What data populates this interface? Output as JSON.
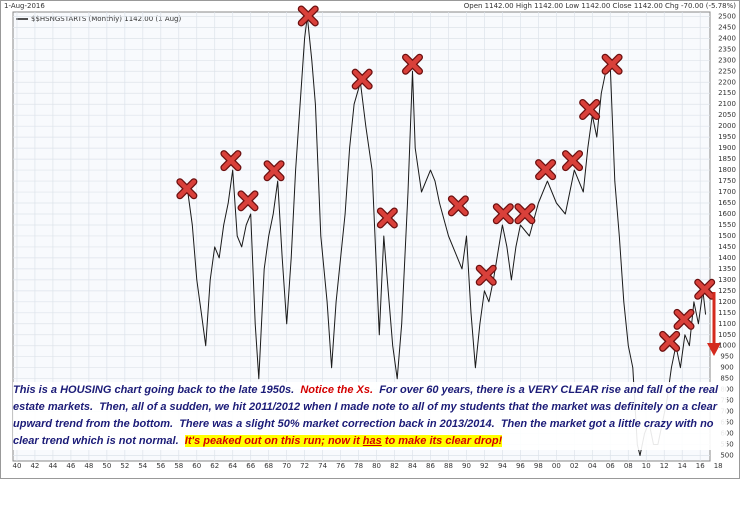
{
  "chart_data": {
    "type": "line",
    "date": "1-Aug-2016",
    "header_right": "Open 1142.00  High 1142.00  Low 1142.00  Close 1142.00  Chg -70.00 (-5.78%)",
    "series": [
      {
        "name": "$$HSNGSTARTS (Monthly) 1142.00 (1 Aug)",
        "color": "#1a1a1a",
        "x": [
          1959.0,
          1959.5,
          1960.0,
          1960.5,
          1961.0,
          1961.5,
          1962.0,
          1962.5,
          1963.0,
          1963.5,
          1964.0,
          1964.5,
          1965.0,
          1965.5,
          1966.0,
          1966.5,
          1966.9,
          1967.5,
          1968.0,
          1968.5,
          1969.0,
          1969.5,
          1970.0,
          1970.5,
          1971.0,
          1971.5,
          1972.0,
          1972.3,
          1972.8,
          1973.2,
          1973.8,
          1974.5,
          1975.0,
          1975.5,
          1976.0,
          1976.5,
          1977.0,
          1977.5,
          1978.2,
          1978.8,
          1979.5,
          1980.3,
          1980.8,
          1981.2,
          1981.8,
          1982.3,
          1982.8,
          1983.5,
          1984.0,
          1984.3,
          1985.0,
          1986.0,
          1986.5,
          1987.0,
          1988.0,
          1989.0,
          1989.5,
          1990.0,
          1990.5,
          1991.0,
          1991.5,
          1992.0,
          1992.5,
          1993.0,
          1994.0,
          1994.5,
          1995.0,
          1995.5,
          1996.0,
          1997.0,
          1998.0,
          1999.0,
          2000.0,
          2001.0,
          2002.0,
          2003.0,
          2003.5,
          2004.0,
          2004.5,
          2005.0,
          2005.5,
          2006.0,
          2006.5,
          2007.0,
          2007.5,
          2008.0,
          2008.5,
          2009.0,
          2009.3,
          2009.8,
          2010.3,
          2010.8,
          2011.3,
          2011.8,
          2012.3,
          2012.8,
          2013.3,
          2013.8,
          2014.3,
          2014.8,
          2015.3,
          2015.8,
          2016.3,
          2016.6
        ],
        "values": [
          1700,
          1550,
          1300,
          1150,
          1000,
          1300,
          1450,
          1400,
          1550,
          1650,
          1800,
          1500,
          1450,
          1550,
          1600,
          1100,
          850,
          1350,
          1500,
          1600,
          1750,
          1400,
          1100,
          1400,
          1800,
          2100,
          2400,
          2500,
          2300,
          2100,
          1500,
          1200,
          900,
          1200,
          1400,
          1600,
          1900,
          2100,
          2200,
          2000,
          1800,
          1050,
          1500,
          1300,
          1000,
          850,
          1100,
          1700,
          2250,
          1900,
          1700,
          1800,
          1750,
          1650,
          1500,
          1400,
          1350,
          1500,
          1150,
          900,
          1100,
          1250,
          1200,
          1300,
          1550,
          1450,
          1300,
          1450,
          1550,
          1500,
          1650,
          1750,
          1650,
          1600,
          1800,
          1700,
          1900,
          2050,
          1950,
          2150,
          2250,
          2270,
          1750,
          1500,
          1200,
          1000,
          900,
          550,
          500,
          600,
          650,
          550,
          550,
          650,
          750,
          900,
          1000,
          900,
          1050,
          1000,
          1200,
          1100,
          1250,
          1142
        ]
      }
    ],
    "x_marks": {
      "x": [
        1958.9,
        1963.8,
        1965.7,
        1968.6,
        1972.4,
        1978.4,
        1981.2,
        1984.0,
        1989.1,
        1992.2,
        1994.1,
        1996.5,
        1998.8,
        2001.8,
        2003.7,
        2006.2,
        2012.6,
        2014.2,
        2016.5
      ],
      "y": [
        1715,
        1843,
        1660,
        1797,
        2502,
        2214,
        1582,
        2282,
        1637,
        1321,
        1601,
        1601,
        1802,
        1843,
        2076,
        2282,
        1020,
        1120,
        1257
      ]
    },
    "xlim": [
      1939.56,
      2017.09
    ],
    "ylim": [
      475,
      2520
    ],
    "xticks": [
      {
        "value": 1940,
        "label": "40"
      },
      {
        "value": 1942,
        "label": "42"
      },
      {
        "value": 1944,
        "label": "44"
      },
      {
        "value": 1946,
        "label": "46"
      },
      {
        "value": 1948,
        "label": "48"
      },
      {
        "value": 1950,
        "label": "50"
      },
      {
        "value": 1952,
        "label": "52"
      },
      {
        "value": 1954,
        "label": "54"
      },
      {
        "value": 1956,
        "label": "56"
      },
      {
        "value": 1958,
        "label": "58"
      },
      {
        "value": 1960,
        "label": "60"
      },
      {
        "value": 1962,
        "label": "62"
      },
      {
        "value": 1964,
        "label": "64"
      },
      {
        "value": 1966,
        "label": "66"
      },
      {
        "value": 1968,
        "label": "68"
      },
      {
        "value": 1970,
        "label": "70"
      },
      {
        "value": 1972,
        "label": "72"
      },
      {
        "value": 1974,
        "label": "74"
      },
      {
        "value": 1976,
        "label": "76"
      },
      {
        "value": 1978,
        "label": "78"
      },
      {
        "value": 1980,
        "label": "80"
      },
      {
        "value": 1982,
        "label": "82"
      },
      {
        "value": 1984,
        "label": "84"
      },
      {
        "value": 1986,
        "label": "86"
      },
      {
        "value": 1988,
        "label": "88"
      },
      {
        "value": 1990,
        "label": "90"
      },
      {
        "value": 1992,
        "label": "92"
      },
      {
        "value": 1994,
        "label": "94"
      },
      {
        "value": 1996,
        "label": "96"
      },
      {
        "value": 1998,
        "label": "98"
      },
      {
        "value": 2000,
        "label": "00"
      },
      {
        "value": 2002,
        "label": "02"
      },
      {
        "value": 2004,
        "label": "04"
      },
      {
        "value": 2006,
        "label": "06"
      },
      {
        "value": 2008,
        "label": "08"
      },
      {
        "value": 2010,
        "label": "10"
      },
      {
        "value": 2012,
        "label": "12"
      },
      {
        "value": 2014,
        "label": "14"
      },
      {
        "value": 2016,
        "label": "16"
      },
      {
        "value": 2018,
        "label": "18"
      }
    ],
    "yticks": [
      500,
      550,
      600,
      650,
      700,
      750,
      800,
      850,
      900,
      950,
      1000,
      1050,
      1100,
      1150,
      1200,
      1250,
      1300,
      1350,
      1400,
      1450,
      1500,
      1550,
      1600,
      1650,
      1700,
      1750,
      1800,
      1850,
      1900,
      1950,
      2000,
      2050,
      2100,
      2150,
      2200,
      2250,
      2300,
      2350,
      2400,
      2450,
      2500
    ],
    "grid": true,
    "note": [
      "This is a HOUSING chart going back to the late 1950s.",
      "Notice the Xs.",
      "For over 60 years, there is a VERY CLEAR rise and fall of the real estate markets.  Then, all of a sudden, we hit 2011/2012 when I made note to all of my students that the market was definitely on a clear upward trend from the bottom.  There was a slight 50% market correction back in 2013/2014.  Then the market got a little crazy with no clear trend which is not normal.",
      "It's peaked out on this run; now it",
      "has",
      "to make its clear drop!"
    ]
  }
}
